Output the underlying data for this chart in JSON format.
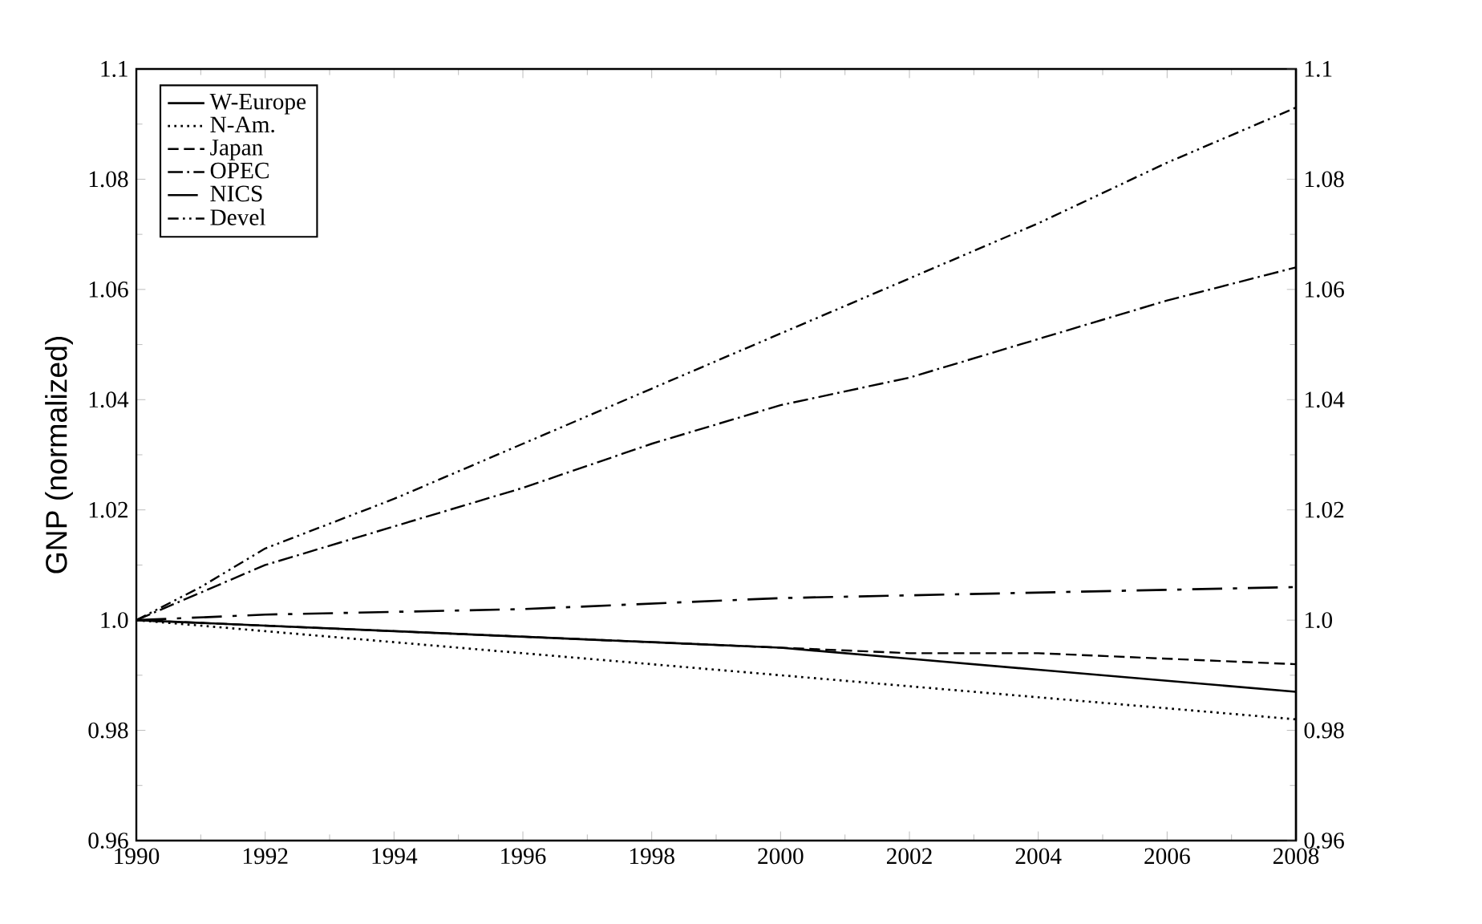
{
  "chart_data": {
    "type": "line",
    "ylabel": "GNP (normalized)",
    "xlim": [
      1990,
      2008
    ],
    "xticks": [
      1990,
      1992,
      1994,
      1996,
      1998,
      2000,
      2002,
      2004,
      2006,
      2008
    ],
    "ylim": [
      0.96,
      1.1
    ],
    "yticks": [
      0.96,
      0.98,
      {
        "value": 1.0,
        "label": "1.0"
      },
      1.02,
      1.04,
      1.06,
      1.08,
      1.1
    ],
    "y2lim": [
      0.96,
      1.1
    ],
    "y2ticks": [
      0.96,
      0.98,
      {
        "value": 1.0,
        "label": "1.0"
      },
      1.02,
      1.04,
      1.06,
      1.08,
      1.1
    ],
    "legend": "top left",
    "grid": false,
    "series": [
      {
        "name": "W-Europe",
        "color": "#000000",
        "line_style": "solid",
        "x": [
          1990,
          1994,
          1998,
          2000,
          2002,
          2004,
          2006,
          2008
        ],
        "values": [
          1.0,
          0.998,
          0.996,
          0.995,
          0.993,
          0.991,
          0.989,
          0.987
        ]
      },
      {
        "name": "N-Am.",
        "color": "#000000",
        "line_style": "dotted",
        "x": [
          1990,
          1992,
          1996,
          2000,
          2004,
          2008
        ],
        "values": [
          1.0,
          0.998,
          0.994,
          0.99,
          0.986,
          0.982
        ]
      },
      {
        "name": "Japan",
        "color": "#000000",
        "line_style": "dashed",
        "x": [
          1990,
          1994,
          1998,
          2000,
          2002,
          2004,
          2006,
          2008
        ],
        "values": [
          1.0,
          0.998,
          0.996,
          0.995,
          0.994,
          0.994,
          0.993,
          0.992
        ]
      },
      {
        "name": "OPEC",
        "color": "#000000",
        "line_style": "dashdot",
        "x": [
          1990,
          1991,
          1992,
          1994,
          1996,
          1998,
          2000,
          2002,
          2004,
          2006,
          2008
        ],
        "values": [
          1.0,
          1.005,
          1.01,
          1.017,
          1.024,
          1.032,
          1.039,
          1.044,
          1.051,
          1.058,
          1.064
        ]
      },
      {
        "name": "NICS",
        "color": "#000000",
        "line_style": "longdashdot",
        "x": [
          1990,
          1992,
          1996,
          2000,
          2004,
          2008
        ],
        "values": [
          1.0,
          1.001,
          1.002,
          1.004,
          1.005,
          1.006
        ]
      },
      {
        "name": "Devel",
        "color": "#000000",
        "line_style": "dashdotdot",
        "x": [
          1990,
          1991,
          1992,
          1994,
          1996,
          1998,
          2000,
          2002,
          2004,
          2006,
          2008
        ],
        "values": [
          1.0,
          1.006,
          1.013,
          1.022,
          1.032,
          1.042,
          1.052,
          1.062,
          1.072,
          1.083,
          1.093
        ]
      }
    ]
  }
}
